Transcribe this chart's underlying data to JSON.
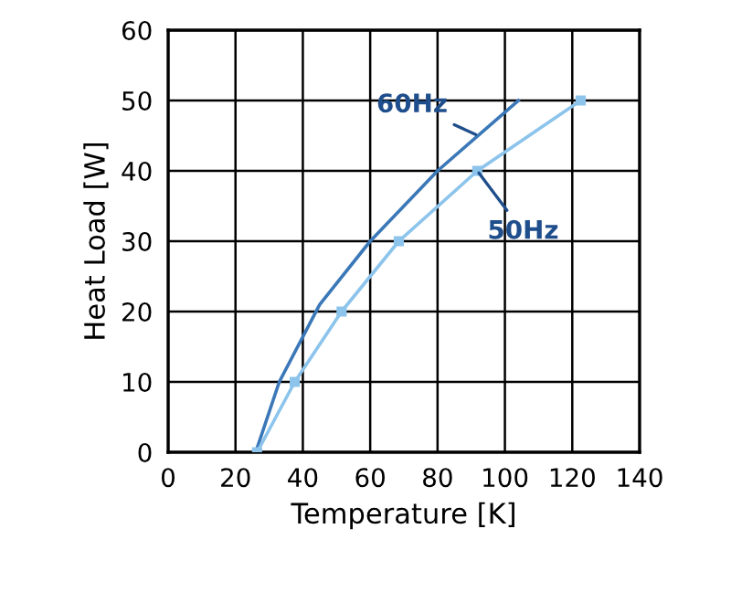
{
  "chart_data": {
    "type": "line",
    "xlabel": "Temperature [K]",
    "ylabel": "Heat Load [W]",
    "xlim": [
      0,
      140
    ],
    "xticks": [
      0,
      20,
      40,
      60,
      80,
      100,
      120,
      140
    ],
    "ylim": [
      0,
      60
    ],
    "yticks": [
      0,
      10,
      20,
      30,
      40,
      50,
      60
    ],
    "grid": true,
    "legend": false,
    "series": [
      {
        "name": "60Hz",
        "color": "#3b78b8",
        "marker": "none",
        "x": [
          26,
          33,
          45,
          60,
          80,
          104
        ],
        "values": [
          0,
          10,
          21,
          30,
          40,
          50
        ]
      },
      {
        "name": "50Hz",
        "color": "#8cc4ec",
        "marker": "square",
        "x": [
          26.4,
          37.6,
          51.5,
          68.5,
          91.8,
          122.5
        ],
        "values": [
          0,
          10,
          20,
          30,
          40,
          50
        ]
      }
    ]
  }
}
